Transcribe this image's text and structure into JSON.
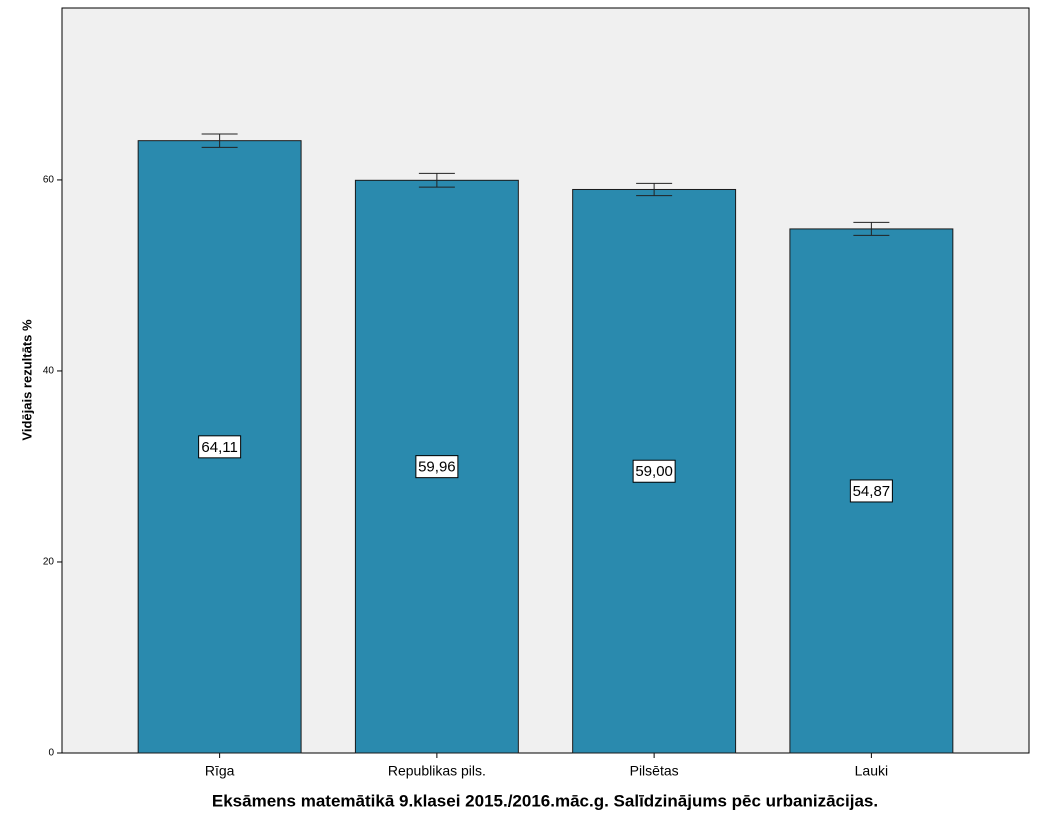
{
  "chart_data": {
    "type": "bar",
    "title": "Eksāmens matemātikā 9.klasei 2015./2016.māc.g. Salīdzinājums pēc urbanizācijas.",
    "y_label": "Vidējais rezultāts %",
    "categories": [
      "Rīga",
      "Republikas pils.",
      "Pilsētas",
      "Lauki"
    ],
    "values": [
      64.11,
      59.96,
      59.0,
      54.87
    ],
    "value_labels": [
      "64,11",
      "59,96",
      "59,00",
      "54,87"
    ],
    "errors": [
      0.7,
      0.72,
      0.64,
      0.68
    ],
    "color": "#2a8aae",
    "ylim": [
      0,
      78
    ],
    "yticks": [
      0,
      20,
      40,
      60
    ],
    "grid": false
  }
}
